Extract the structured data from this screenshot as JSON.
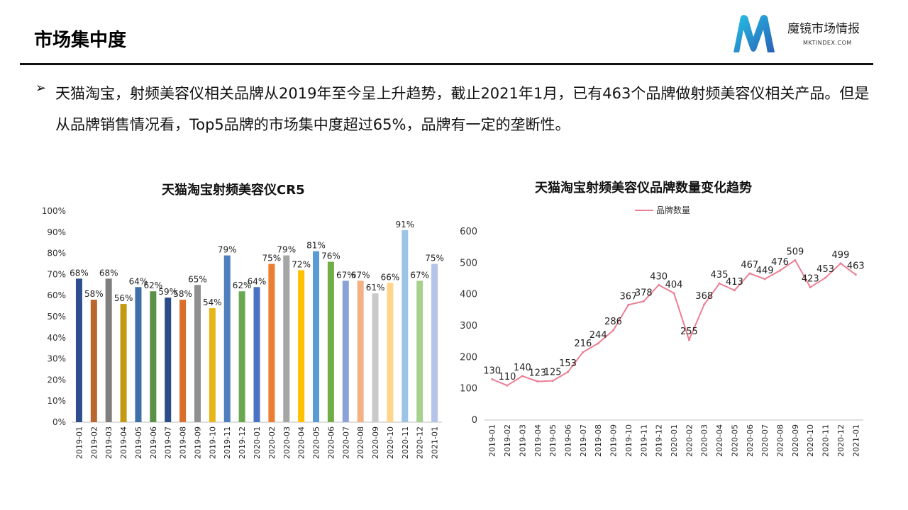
{
  "header": {
    "title": "市场集中度",
    "logo_name": "魔镜市场情报",
    "logo_site": "MKTINDEX.COM"
  },
  "summary": {
    "bullet": "➢",
    "text": "天猫淘宝，射频美容仪相关品牌从2019年至今呈上升趋势，截止2021年1月，已有463个品牌做射频美容仪相关产品。但是从品牌销售情况看，Top5品牌的市场集中度超过65%，品牌有一定的垄断性。"
  },
  "colors": {
    "brand_cyan": "#1aa7d6",
    "brand_blue": "#2a64b8",
    "line": "#ec7e94"
  },
  "chart_data": [
    {
      "type": "bar",
      "title": "天猫淘宝射频美容仪CR5",
      "categories": [
        "2019-01",
        "2019-02",
        "2019-03",
        "2019-04",
        "2019-05",
        "2019-06",
        "2019-07",
        "2019-08",
        "2019-09",
        "2019-10",
        "2019-11",
        "2019-12",
        "2020-01",
        "2020-02",
        "2020-03",
        "2020-04",
        "2020-05",
        "2020-06",
        "2020-07",
        "2020-08",
        "2020-09",
        "2020-10",
        "2020-11",
        "2020-12",
        "2021-01"
      ],
      "values": [
        68,
        58,
        68,
        56,
        64,
        62,
        59,
        58,
        65,
        54,
        79,
        62,
        64,
        75,
        79,
        72,
        81,
        76,
        67,
        67,
        61,
        66,
        91,
        67,
        75
      ],
      "value_labels": [
        "68%",
        "58%",
        "68%",
        "56%",
        "64%",
        "62%",
        "59%",
        "58%",
        "65%",
        "54%",
        "79%",
        "62%",
        "64%",
        "75%",
        "79%",
        "72%",
        "81%",
        "76%",
        "67%",
        "67%",
        "61%",
        "66%",
        "91%",
        "67%",
        "75%"
      ],
      "bar_colors": [
        "#2f4e8e",
        "#b9672c",
        "#7f7f7f",
        "#c49a13",
        "#3f6fab",
        "#5a9147",
        "#2b4c89",
        "#d96f2b",
        "#8f8f8f",
        "#e6b619",
        "#4f7fbf",
        "#6aa84f",
        "#4a72c4",
        "#ed7d31",
        "#a5a5a5",
        "#ffc000",
        "#5b9bd5",
        "#70ad47",
        "#8aa2d8",
        "#f4b183",
        "#c9c9c9",
        "#ffd68a",
        "#9dc3e6",
        "#a9d18e",
        "#b4c3e8"
      ],
      "ylim": [
        0,
        100
      ],
      "yticks": [
        "0%",
        "10%",
        "20%",
        "30%",
        "40%",
        "50%",
        "60%",
        "70%",
        "80%",
        "90%",
        "100%"
      ],
      "grid": false
    },
    {
      "type": "line",
      "title": "天猫淘宝射频美容仪品牌数量变化趋势",
      "x": [
        "2019-01",
        "2019-02",
        "2019-03",
        "2019-04",
        "2019-05",
        "2019-06",
        "2019-07",
        "2019-08",
        "2019-09",
        "2019-10",
        "2019-11",
        "2019-12",
        "2020-01",
        "2020-02",
        "2020-03",
        "2020-04",
        "2020-05",
        "2020-06",
        "2020-07",
        "2020-08",
        "2020-09",
        "2020-10",
        "2020-11",
        "2020-12",
        "2021-01"
      ],
      "series": [
        {
          "name": "品牌数量",
          "values": [
            130,
            110,
            140,
            123,
            125,
            153,
            216,
            244,
            286,
            367,
            378,
            430,
            404,
            255,
            368,
            435,
            413,
            467,
            449,
            476,
            509,
            423,
            453,
            499,
            463
          ]
        }
      ],
      "ylim": [
        0,
        600
      ],
      "yticks": [
        "0",
        "100",
        "200",
        "300",
        "400",
        "500",
        "600"
      ],
      "legend": "top",
      "grid": false
    }
  ]
}
